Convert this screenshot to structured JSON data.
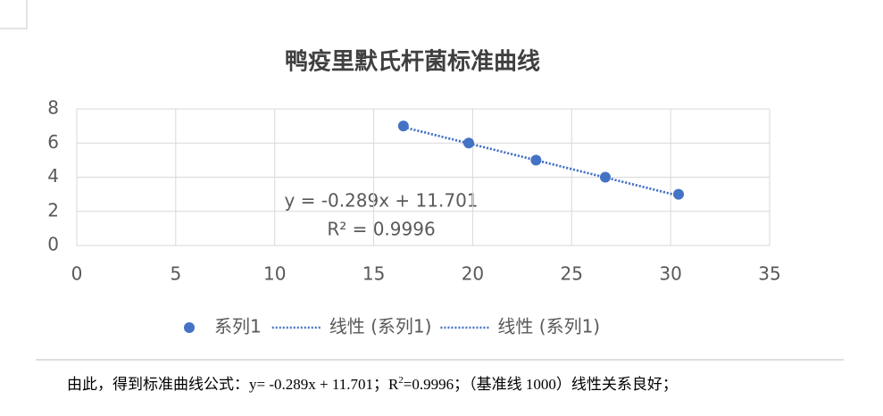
{
  "chart_data": {
    "type": "scatter",
    "title": "鸭疫里默氏杆菌标准曲线",
    "series": [
      {
        "name": "系列1",
        "color": "#4472c4",
        "x": [
          16.5,
          19.8,
          23.2,
          26.7,
          30.4
        ],
        "values": [
          7,
          6,
          5,
          4,
          3
        ]
      }
    ],
    "trendlines": [
      {
        "name": "线性 (系列1)",
        "color": "#4472c4",
        "slope": -0.289,
        "intercept": 11.701,
        "equation": "y = -0.289x + 11.701",
        "r2_label": "R² = 0.9996"
      },
      {
        "name": "线性 (系列1)",
        "color": "#4472c4",
        "slope": -0.289,
        "intercept": 11.701
      }
    ],
    "xlim": [
      0,
      35
    ],
    "xticks": [
      0,
      5,
      10,
      15,
      20,
      25,
      30,
      35
    ],
    "ylim": [
      0,
      8
    ],
    "yticks": [
      0,
      2,
      4,
      6,
      8
    ],
    "grid": true,
    "legend": "bottom"
  },
  "document": {
    "text_before": "由此，得到标准曲线公式：y= -0.289x + 11.701；R",
    "superscript": "2",
    "text_after": "=0.9996；（基准线 1000）线性关系良好；"
  }
}
